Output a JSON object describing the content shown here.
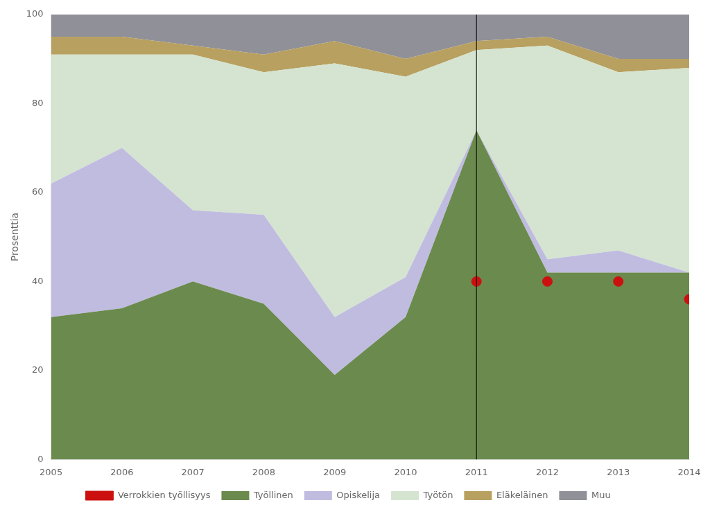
{
  "chart_data": {
    "type": "area",
    "stacked": true,
    "x": [
      2005,
      2006,
      2007,
      2008,
      2009,
      2010,
      2011,
      2012,
      2013,
      2014
    ],
    "series": [
      {
        "name": "Työllinen",
        "color": "#6b8a4e",
        "values": [
          32,
          34,
          40,
          35,
          19,
          32,
          74,
          42,
          42,
          42
        ]
      },
      {
        "name": "Opiskelija",
        "color": "#c0bce0",
        "values": [
          30,
          36,
          16,
          20,
          13,
          9,
          0,
          3,
          5,
          0
        ]
      },
      {
        "name": "Työtön",
        "color": "#d4e4d0",
        "values": [
          29,
          21,
          35,
          32,
          57,
          45,
          18,
          48,
          40,
          46
        ]
      },
      {
        "name": "Eläkeläinen",
        "color": "#b8a060",
        "values": [
          4,
          4,
          2,
          4,
          5,
          4,
          2,
          2,
          3,
          2
        ]
      },
      {
        "name": "Muu",
        "color": "#909098",
        "values": [
          5,
          5,
          7,
          9,
          6,
          10,
          6,
          5,
          10,
          10
        ]
      },
      {
        "name": "Verrokkien työllisyys",
        "type": "scatter",
        "color": "#cc1010",
        "x": [
          2011,
          2012,
          2013,
          2014
        ],
        "values": [
          40,
          40,
          40,
          36
        ]
      }
    ],
    "ylabel": "Prosenttia",
    "xlim": [
      2005,
      2014
    ],
    "xticks": [
      2005,
      2006,
      2007,
      2008,
      2009,
      2010,
      2011,
      2012,
      2013,
      2014
    ],
    "ylim": [
      0,
      100
    ],
    "yticks": [
      0,
      20,
      40,
      60,
      80,
      100
    ],
    "vlines": [
      2011
    ],
    "grid": false,
    "legend": "bottom"
  }
}
